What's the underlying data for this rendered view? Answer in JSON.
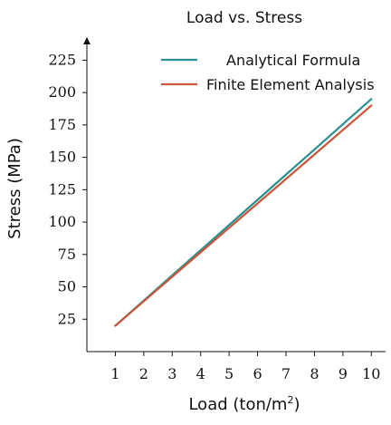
{
  "chart_data": {
    "type": "line",
    "title": "Load vs. Stress",
    "xlabel": "Load (ton/m",
    "xlabel_superscript": "2",
    "xlabel_suffix": ")",
    "ylabel": "Stress (MPa)",
    "x": [
      1,
      2,
      3,
      4,
      5,
      6,
      7,
      8,
      9,
      10
    ],
    "x_ticks": [
      "1",
      "2",
      "3",
      "4",
      "5",
      "6",
      "7",
      "8",
      "9",
      "10"
    ],
    "y_ticks": [
      "25",
      "50",
      "75",
      "100",
      "125",
      "150",
      "175",
      "200",
      "225"
    ],
    "xlim": [
      0,
      10.5
    ],
    "ylim": [
      0,
      240
    ],
    "grid": false,
    "legend_position": "top-right",
    "series": [
      {
        "name": "Analytical Formula",
        "color": "#2a8f8f",
        "values": [
          20,
          39.4,
          58.9,
          78.3,
          97.8,
          117.2,
          136.7,
          156.1,
          175.6,
          195
        ]
      },
      {
        "name": "Finite Element Analysis",
        "color": "#c9553a",
        "values": [
          20,
          38.9,
          57.8,
          76.7,
          95.6,
          114.4,
          133.3,
          152.2,
          171.1,
          190
        ]
      }
    ]
  }
}
